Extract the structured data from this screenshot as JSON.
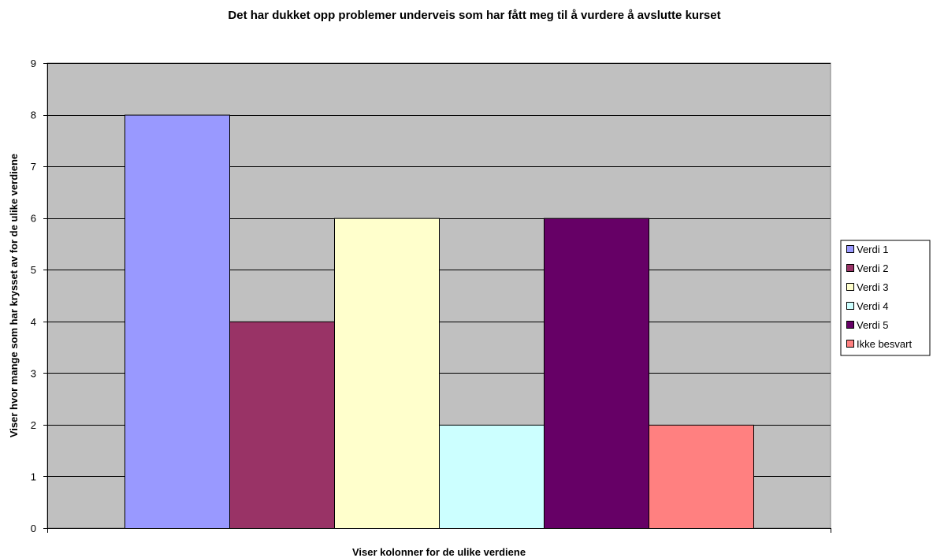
{
  "chart_data": {
    "type": "bar",
    "title": "Det har dukket opp problemer underveis som har fått meg til å vurdere å avslutte kurset",
    "xlabel": "Viser kolonner for de ulike verdiene",
    "ylabel": "Viser hvor mange som har krysset av for de ulike verdiene",
    "ylim": [
      0,
      9
    ],
    "yticks": [
      "0",
      "1",
      "2",
      "3",
      "4",
      "5",
      "6",
      "7",
      "8",
      "9"
    ],
    "grid": true,
    "legend_position": "right",
    "plot_background": "#C0C0C0",
    "series": [
      {
        "name": "Verdi 1",
        "value": 8,
        "color": "#9999FF"
      },
      {
        "name": "Verdi 2",
        "value": 4,
        "color": "#993366"
      },
      {
        "name": "Verdi 3",
        "value": 6,
        "color": "#FFFFCC"
      },
      {
        "name": "Verdi 4",
        "value": 2,
        "color": "#CCFFFF"
      },
      {
        "name": "Verdi 5",
        "value": 6,
        "color": "#660066"
      },
      {
        "name": "Ikke besvart",
        "value": 2,
        "color": "#FF8080"
      }
    ]
  }
}
